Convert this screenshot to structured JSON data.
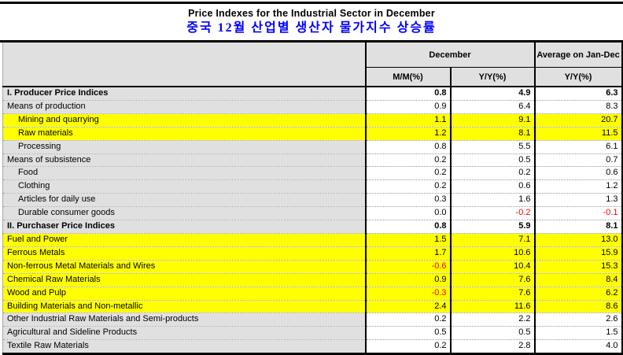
{
  "title": {
    "line1": "Price Indexes for the Industrial Sector in December",
    "line2": "중국 12월 산업별 생산자 물가지수 상승률"
  },
  "table": {
    "header": {
      "december": "December",
      "average": "Average on Jan-Dec",
      "mm": "M/M(%)",
      "yy": "Y/Y(%)",
      "avg_yy": "Y/Y(%)"
    },
    "rows": [
      {
        "label": "I. Producer Price Indices",
        "mm": "0.8",
        "yy": "4.9",
        "avg": "6.3",
        "bold": true,
        "indent": 0,
        "highlight": false
      },
      {
        "label": "Means of production",
        "mm": "0.9",
        "yy": "6.4",
        "avg": "8.3",
        "bold": false,
        "indent": 0,
        "highlight": false
      },
      {
        "label": "Mining and quarrying",
        "mm": "1.1",
        "yy": "9.1",
        "avg": "20.7",
        "bold": false,
        "indent": 1,
        "highlight": true
      },
      {
        "label": "Raw materials",
        "mm": "1.2",
        "yy": "8.1",
        "avg": "11.5",
        "bold": false,
        "indent": 1,
        "highlight": true
      },
      {
        "label": "Processing",
        "mm": "0.8",
        "yy": "5.5",
        "avg": "6.1",
        "bold": false,
        "indent": 1,
        "highlight": false
      },
      {
        "label": "Means of subsistence",
        "mm": "0.2",
        "yy": "0.5",
        "avg": "0.7",
        "bold": false,
        "indent": 0,
        "highlight": false
      },
      {
        "label": "Food",
        "mm": "0.2",
        "yy": "0.2",
        "avg": "0.6",
        "bold": false,
        "indent": 1,
        "highlight": false
      },
      {
        "label": "Clothing",
        "mm": "0.2",
        "yy": "0.6",
        "avg": "1.2",
        "bold": false,
        "indent": 1,
        "highlight": false
      },
      {
        "label": "Articles for daily use",
        "mm": "0.3",
        "yy": "1.6",
        "avg": "1.3",
        "bold": false,
        "indent": 1,
        "highlight": false
      },
      {
        "label": "Durable consumer goods",
        "mm": "0.0",
        "yy": "-0.2",
        "avg": "-0.1",
        "bold": false,
        "indent": 1,
        "highlight": false
      },
      {
        "label": "II. Purchaser Price Indices",
        "mm": "0.8",
        "yy": "5.9",
        "avg": "8.1",
        "bold": true,
        "indent": 0,
        "highlight": false
      },
      {
        "label": "Fuel and Power",
        "mm": "1.5",
        "yy": "7.1",
        "avg": "13.0",
        "bold": false,
        "indent": 0,
        "highlight": true
      },
      {
        "label": "Ferrous Metals",
        "mm": "1.7",
        "yy": "10.6",
        "avg": "15.9",
        "bold": false,
        "indent": 0,
        "highlight": true
      },
      {
        "label": "Non-ferrous Metal Materials and Wires",
        "mm": "-0.6",
        "yy": "10.4",
        "avg": "15.3",
        "bold": false,
        "indent": 0,
        "highlight": true
      },
      {
        "label": "Chemical Raw Materials",
        "mm": "0.9",
        "yy": "7.6",
        "avg": "8.4",
        "bold": false,
        "indent": 0,
        "highlight": true
      },
      {
        "label": "Wood and Pulp",
        "mm": "-0.3",
        "yy": "7.6",
        "avg": "6.2",
        "bold": false,
        "indent": 0,
        "highlight": true
      },
      {
        "label": "Building Materials and Non-metallic",
        "mm": "2.4",
        "yy": "11.6",
        "avg": "8.6",
        "bold": false,
        "indent": 0,
        "highlight": true
      },
      {
        "label": "Other Industrial Raw Materials and Semi-products",
        "mm": "0.2",
        "yy": "2.2",
        "avg": "2.6",
        "bold": false,
        "indent": 0,
        "highlight": false
      },
      {
        "label": "Agricultural and Sideline Products",
        "mm": "0.5",
        "yy": "0.5",
        "avg": "1.5",
        "bold": false,
        "indent": 0,
        "highlight": false
      },
      {
        "label": "Textile Raw Materials",
        "mm": "0.2",
        "yy": "2.8",
        "avg": "4.0",
        "bold": false,
        "indent": 0,
        "highlight": false
      }
    ],
    "colors": {
      "highlight": "#ffff00",
      "label_bg": "#e0e0e0",
      "negative": "#ff0000",
      "title_accent": "#0000ff",
      "rule": "#000000"
    }
  }
}
